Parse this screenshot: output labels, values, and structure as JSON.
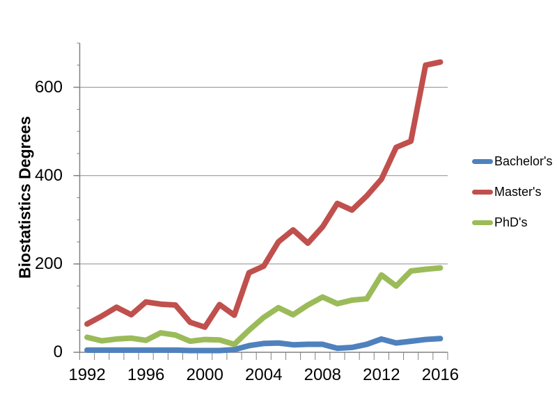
{
  "chart_data": {
    "type": "line",
    "title": "",
    "xlabel": "",
    "ylabel": "Biostatistics Degrees",
    "x": [
      1992,
      1993,
      1994,
      1995,
      1996,
      1997,
      1998,
      1999,
      2000,
      2001,
      2002,
      2003,
      2004,
      2005,
      2006,
      2007,
      2008,
      2009,
      2010,
      2011,
      2012,
      2013,
      2014,
      2015,
      2016
    ],
    "series": [
      {
        "name": "Bachelor's",
        "color": "#4F81BD",
        "values": [
          5,
          5,
          5,
          5,
          5,
          5,
          5,
          4,
          4,
          4,
          6,
          15,
          20,
          21,
          17,
          18,
          18,
          9,
          11,
          18,
          30,
          21,
          25,
          29,
          31
        ]
      },
      {
        "name": "Master's",
        "color": "#C0504D",
        "values": [
          64,
          82,
          102,
          85,
          114,
          109,
          107,
          68,
          57,
          108,
          84,
          180,
          195,
          250,
          277,
          247,
          284,
          337,
          322,
          354,
          392,
          464,
          478,
          650,
          657
        ]
      },
      {
        "name": "PhD's",
        "color": "#9BBB59",
        "values": [
          34,
          26,
          30,
          32,
          27,
          44,
          39,
          25,
          29,
          28,
          18,
          50,
          79,
          101,
          85,
          107,
          125,
          110,
          118,
          121,
          175,
          150,
          184,
          188,
          191
        ]
      }
    ],
    "ylim": [
      0,
      700
    ],
    "ytick_major": [
      0,
      200,
      400,
      600
    ],
    "ytick_labels": [
      "0",
      "200",
      "400",
      "600"
    ],
    "ytick_minor_step": 50,
    "xtick_every_years": 4,
    "xtick_labels": [
      "1992",
      "1996",
      "2000",
      "2004",
      "2008",
      "2012",
      "2016"
    ],
    "grid": "horizontal-major-only",
    "legend_position": "right",
    "line_width": 8,
    "colors": {
      "axis": "#808080",
      "grid": "#8C8C8C",
      "text": "#000000",
      "background": "#FFFFFF"
    }
  }
}
